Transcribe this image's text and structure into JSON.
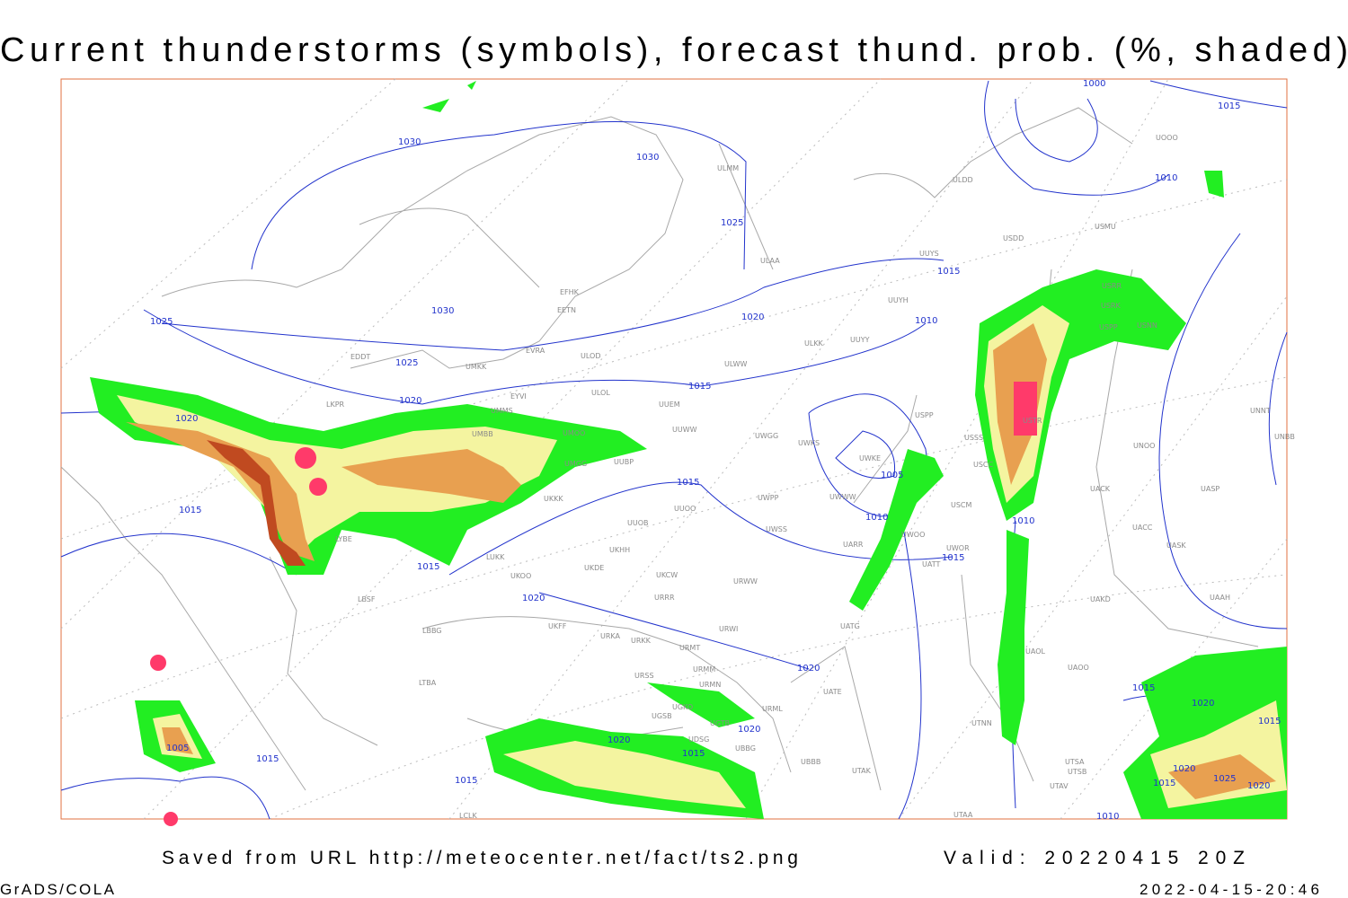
{
  "title": "Current thunderstorms (symbols), forecast thund. prob. (%, shaded)",
  "footer": {
    "source": "Saved from URL http://meteocenter.net/fact/ts2.png",
    "valid": "Valid: 20220415 20Z",
    "software": "GrADS/COLA",
    "timestamp": "2022-04-15-20:46"
  },
  "isobar_labels": [
    1000,
    1015,
    1010,
    1030,
    1030,
    1025,
    1015,
    1020,
    1010,
    1030,
    1025,
    1025,
    1015,
    1020,
    1020,
    1005,
    1015,
    1010,
    1010,
    1015,
    1015,
    1015,
    1020,
    1020,
    1020,
    1020,
    1005,
    1015,
    1015,
    1015,
    1015,
    1020,
    1015,
    1020,
    1025,
    1020,
    1010,
    1015
  ],
  "stations": [
    "ULMM",
    "ULAA",
    "UUYS",
    "UUYH",
    "ULDD",
    "USDD",
    "USMU",
    "UUYY",
    "ULKK",
    "ULWW",
    "EETN",
    "EFHK",
    "EVRA",
    "ULOL",
    "UUEM",
    "UUWW",
    "UMMS",
    "EYVI",
    "UMKK",
    "EDDT",
    "LKPR",
    "UMBB",
    "UMGG",
    "UUBP",
    "UKKK",
    "UUOB",
    "UUOO",
    "UWPP",
    "UWSS",
    "UWGG",
    "UWKS",
    "UWKE",
    "UWWW",
    "USPP",
    "USCM",
    "UWOO",
    "UWOR",
    "UATT",
    "UARR",
    "URWW",
    "URRR",
    "UKDE",
    "UKHH",
    "UKFF",
    "UKCW",
    "LUKK",
    "LYBE",
    "LBSF",
    "LBBG",
    "LTBA",
    "UATG",
    "URWI",
    "URMT",
    "URKK",
    "URKA",
    "URMM",
    "URSS",
    "URMN",
    "UGKO",
    "UGSB",
    "UGTB",
    "UBBG",
    "UDSG",
    "UATE",
    "URML",
    "UBBB",
    "UTAK",
    "UTAA",
    "UTSA",
    "UTSB",
    "UTAV",
    "UTNN",
    "UAOL",
    "UAOO",
    "UAKD",
    "UASK",
    "UACC",
    "UACK",
    "UAAH",
    "UNOO",
    "UNNT",
    "UNBB",
    "UASP",
    "USTR",
    "USSS",
    "USCC",
    "USRR",
    "USRK",
    "USPP",
    "USNN",
    "UOOO",
    "UKOO",
    "LCLK",
    "UMOO",
    "ULOD"
  ]
}
